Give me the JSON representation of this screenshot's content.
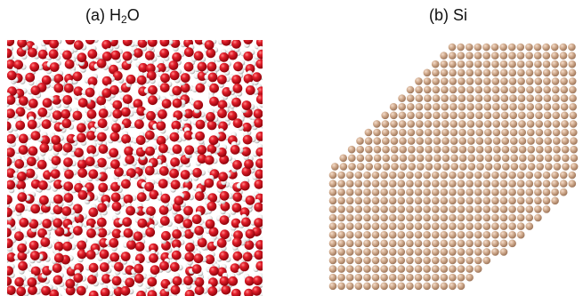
{
  "panels": [
    {
      "label_prefix": "(a) H",
      "label_subscript": "2",
      "label_suffix": "O",
      "kind": "water molecules",
      "colors": {
        "oxygen": "#d4101e",
        "hydrogen": "#ffffff"
      }
    },
    {
      "label": "(b) Si",
      "kind": "silicon lattice",
      "colors": {
        "silicon": "#c9a283"
      }
    }
  ]
}
